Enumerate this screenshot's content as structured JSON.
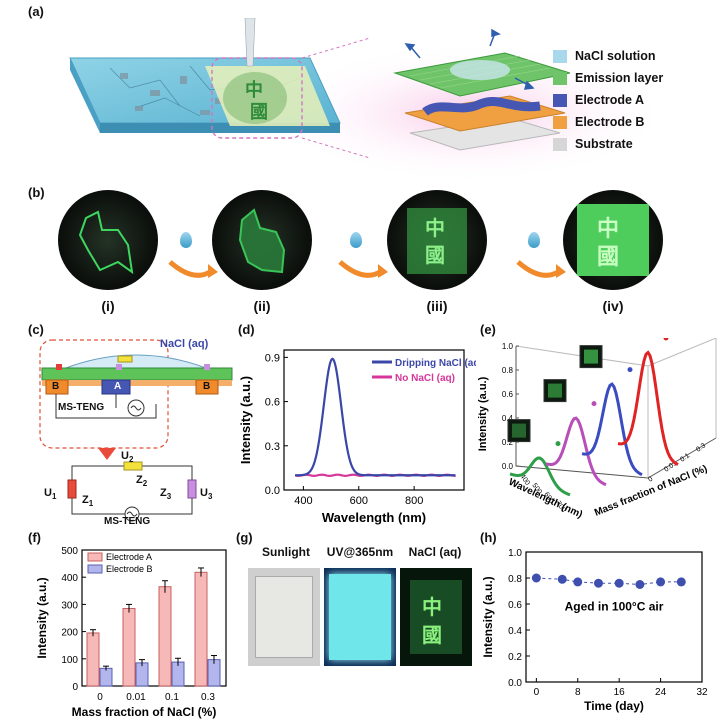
{
  "panels": {
    "a": "(a)",
    "b": "(b)",
    "c": "(c)",
    "d": "(d)",
    "e": "(e)",
    "f": "(f)",
    "g": "(g)",
    "h": "(h)"
  },
  "panel_a": {
    "legend": [
      {
        "label": "NaCl solution",
        "color": "#a9d8ec"
      },
      {
        "label": "Emission layer",
        "color": "#6fc46a"
      },
      {
        "label": "Electrode A",
        "color": "#4657b3"
      },
      {
        "label": "Electrode B",
        "color": "#f0a040"
      },
      {
        "label": "Substrate",
        "color": "#d6d6d6"
      }
    ]
  },
  "panel_b": {
    "labels": [
      "(i)",
      "(ii)",
      "(iii)",
      "(iv)"
    ]
  },
  "panel_c": {
    "nacl_label": "NaCl (aq)",
    "electrode_b": "B",
    "electrode_a": "A",
    "electrode_b2": "B",
    "teng_label": "MS-TENG",
    "circuit": {
      "u1": "U",
      "u1_sub": "1",
      "z1": "Z",
      "z1_sub": "1",
      "u2": "U",
      "u2_sub": "2",
      "z2": "Z",
      "z2_sub": "2",
      "z3": "Z",
      "z3_sub": "3",
      "u3": "U",
      "u3_sub": "3",
      "teng": "MS-TENG"
    }
  },
  "panel_g": {
    "labels": [
      "Sunlight",
      "UV@365nm",
      "NaCl (aq)"
    ]
  },
  "chart_data": [
    {
      "id": "d",
      "type": "line",
      "xlabel": "Wavelength (nm)",
      "ylabel": "Intensity (a.u.)",
      "xlim": [
        330,
        980
      ],
      "ylim": [
        0,
        0.95
      ],
      "xticks": [
        400,
        600,
        800
      ],
      "yticks": [
        0.0,
        0.3,
        0.6,
        0.9
      ],
      "legend_position": "top-right",
      "series": [
        {
          "name": "Dripping NaCl (aq)",
          "color": "#3b47a8",
          "peak": 505,
          "height": 0.89,
          "width": 38,
          "base": 0.1
        },
        {
          "name": "No NaCl (aq)",
          "color": "#d6359a",
          "flat": 0.1
        }
      ]
    },
    {
      "id": "e",
      "type": "line",
      "xlabel": "Wavelength (nm)",
      "ylabel": "Intensity (a.u.)",
      "zlabel": "Mass fraction of NaCl (%)",
      "yticks": [
        0.0,
        0.2,
        0.4,
        0.6,
        0.8,
        1.0
      ],
      "xticks": [
        "400",
        "500",
        "600",
        "700"
      ],
      "zticks": [
        "0",
        "0.01",
        "0.1",
        "0.3"
      ],
      "series": [
        {
          "name": "0",
          "color": "#2f9e49",
          "height": 0.22
        },
        {
          "name": "0.01",
          "color": "#b84fb8",
          "height": 0.47
        },
        {
          "name": "0.1",
          "color": "#3b4cc0",
          "height": 0.67
        },
        {
          "name": "0.3",
          "color": "#e02323",
          "height": 0.85
        }
      ]
    },
    {
      "id": "f",
      "type": "bar",
      "xlabel": "Mass fraction of NaCl (%)",
      "ylabel": "Intensity (a.u.)",
      "categories": [
        "0",
        "0.01",
        "0.1",
        "0.3"
      ],
      "ylim": [
        0,
        500
      ],
      "yticks": [
        0,
        100,
        200,
        300,
        400,
        500
      ],
      "legend_position": "top-left",
      "series": [
        {
          "name": "Electrode A",
          "color": "#f7b8b8",
          "edge": "#c46060",
          "values": [
            195,
            285,
            365,
            418
          ],
          "errors": [
            12,
            15,
            22,
            16
          ]
        },
        {
          "name": "Electrode B",
          "color": "#b3b6ec",
          "edge": "#5a5fb0",
          "values": [
            65,
            85,
            88,
            97
          ],
          "errors": [
            8,
            12,
            14,
            15
          ]
        }
      ]
    },
    {
      "id": "h",
      "type": "scatter",
      "xlabel": "Time (day)",
      "ylabel": "Intensity (a.u.)",
      "xlim": [
        -2,
        32
      ],
      "ylim": [
        0,
        1.0
      ],
      "xticks": [
        0,
        8,
        16,
        24,
        32
      ],
      "yticks": [
        0.0,
        0.2,
        0.4,
        0.6,
        0.8,
        1.0
      ],
      "annotation": "Aged in 100°C air",
      "color": "#3f4fb0",
      "x": [
        0,
        5,
        8,
        12,
        16,
        20,
        24,
        28
      ],
      "y": [
        0.8,
        0.79,
        0.77,
        0.76,
        0.76,
        0.75,
        0.77,
        0.77
      ]
    }
  ]
}
